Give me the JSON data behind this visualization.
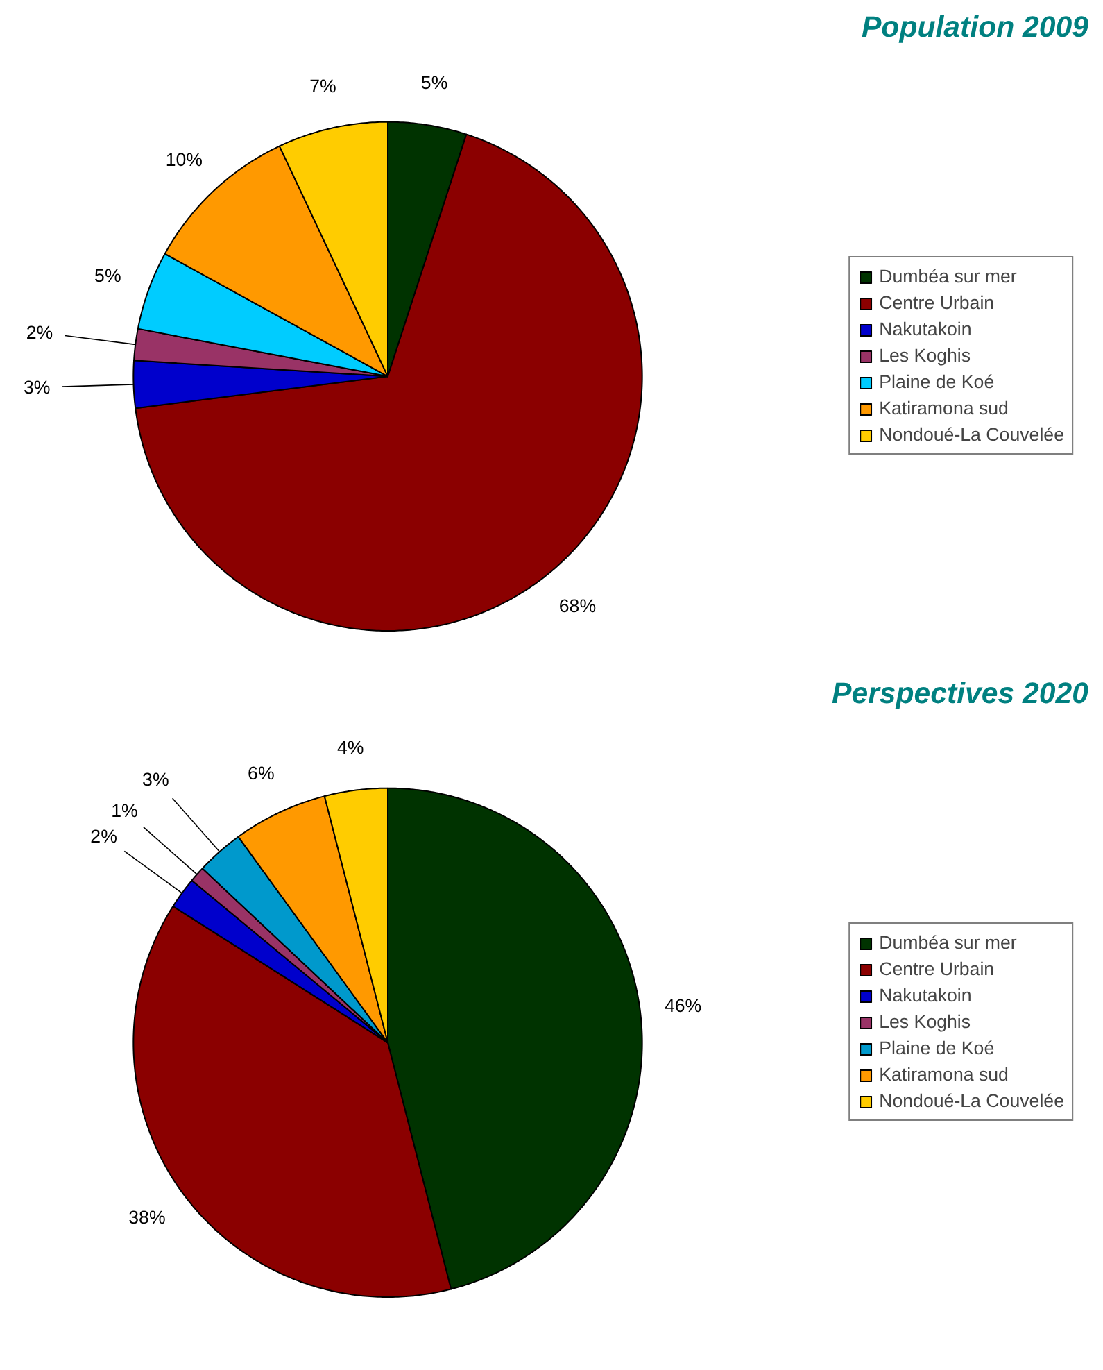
{
  "chart_data": [
    {
      "type": "pie",
      "title": "Population 2009",
      "categories": [
        "Dumbéa sur mer",
        "Centre Urbain",
        "Nakutakoin",
        "Les Koghis",
        "Plaine de Koé",
        "Katiramona sud",
        "Nondoué-La Couvelée"
      ],
      "values": [
        5,
        68,
        3,
        2,
        5,
        10,
        7
      ],
      "colors": [
        "#003300",
        "#8b0000",
        "#0000cc",
        "#993366",
        "#00ccff",
        "#ff9900",
        "#ffcc00"
      ],
      "value_labels": [
        "5%",
        "68%",
        "3%",
        "2%",
        "5%",
        "10%",
        "7%"
      ],
      "legend": "right"
    },
    {
      "type": "pie",
      "title": "Perspectives 2020",
      "categories": [
        "Dumbéa sur mer",
        "Centre Urbain",
        "Nakutakoin",
        "Les Koghis",
        "Plaine de Koé",
        "Katiramona sud",
        "Nondoué-La Couvelée"
      ],
      "values": [
        46,
        38,
        2,
        1,
        3,
        6,
        4
      ],
      "colors": [
        "#003300",
        "#8b0000",
        "#0000cc",
        "#993366",
        "#0099cc",
        "#ff9900",
        "#ffcc00"
      ],
      "value_labels": [
        "46%",
        "38%",
        "2%",
        "1%",
        "3%",
        "6%",
        "4%"
      ],
      "legend": "right"
    }
  ]
}
